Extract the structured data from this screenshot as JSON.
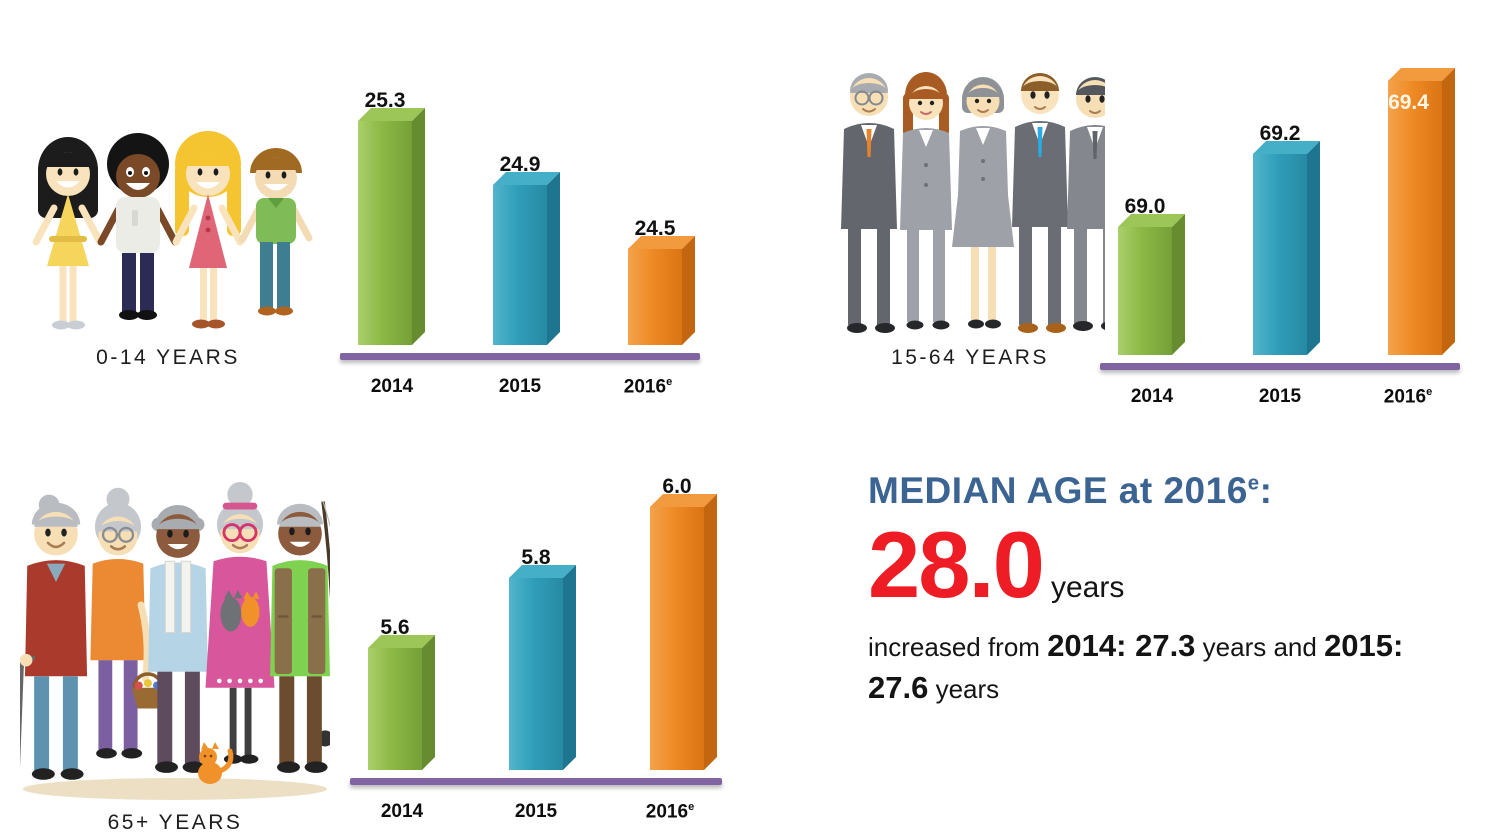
{
  "page": {
    "background": "#FFFFFF"
  },
  "figures": [
    {
      "id": "children",
      "caption": "0-14 YEARS",
      "icon": "children-group-illustration"
    },
    {
      "id": "adults",
      "caption": "15-64 YEARS",
      "icon": "adults-group-illustration"
    },
    {
      "id": "elderly",
      "caption": "65+ YEARS",
      "icon": "elderly-group-illustration"
    }
  ],
  "bar_palette": [
    {
      "name": "green",
      "top": "#9CC758",
      "light": "#AACF6B",
      "front": "#8CB845",
      "dark": "#74A038",
      "side": "#678C2F"
    },
    {
      "name": "blue",
      "top": "#45AFC8",
      "light": "#52B5CC",
      "front": "#2F9EB9",
      "dark": "#2789A3",
      "side": "#1E7590"
    },
    {
      "name": "orange",
      "top": "#F19A3E",
      "light": "#F4A34C",
      "front": "#EE8A25",
      "dark": "#DB7413",
      "side": "#C2660F"
    }
  ],
  "chart_data": [
    {
      "type": "bar",
      "group_label": "0-14 YEARS",
      "categories": [
        {
          "label": "2014"
        },
        {
          "label": "2015"
        },
        {
          "label": "2016",
          "sup": "e"
        }
      ],
      "values": [
        25.3,
        24.9,
        24.5
      ],
      "label_positions": [
        "above",
        "above",
        "above"
      ],
      "ylim": [
        23.9,
        25.4
      ],
      "baseline_color": "#8064A2",
      "grid": false,
      "legend": "none"
    },
    {
      "type": "bar",
      "group_label": "15-64 YEARS",
      "categories": [
        {
          "label": "2014"
        },
        {
          "label": "2015"
        },
        {
          "label": "2016",
          "sup": "e"
        }
      ],
      "values": [
        69.0,
        69.2,
        69.4
      ],
      "label_positions": [
        "above",
        "above",
        "inside"
      ],
      "ylim": [
        68.65,
        69.41
      ],
      "baseline_color": "#8064A2",
      "grid": false,
      "legend": "none"
    },
    {
      "type": "bar",
      "group_label": "65+ YEARS",
      "categories": [
        {
          "label": "2014"
        },
        {
          "label": "2015"
        },
        {
          "label": "2016",
          "sup": "e"
        }
      ],
      "values": [
        5.6,
        5.8,
        6.0
      ],
      "label_positions": [
        "above",
        "above",
        "above"
      ],
      "ylim": [
        5.25,
        6.05
      ],
      "baseline_color": "#8064A2",
      "grid": false,
      "legend": "none"
    }
  ],
  "median_block": {
    "title_main": "MEDIAN AGE at 2016",
    "title_sup": "e",
    "title_colon": ":",
    "title_color": "#3C6493",
    "value": "28.0",
    "value_color": "#EE1C24",
    "unit": "years",
    "detail_segments": [
      {
        "text": "increased from ",
        "bold": false
      },
      {
        "text": "2014: 27.3",
        "bold": true
      },
      {
        "text": " years  and ",
        "bold": false
      },
      {
        "text": "2015: 27.6",
        "bold": true
      },
      {
        "text": " years",
        "bold": false
      }
    ]
  }
}
